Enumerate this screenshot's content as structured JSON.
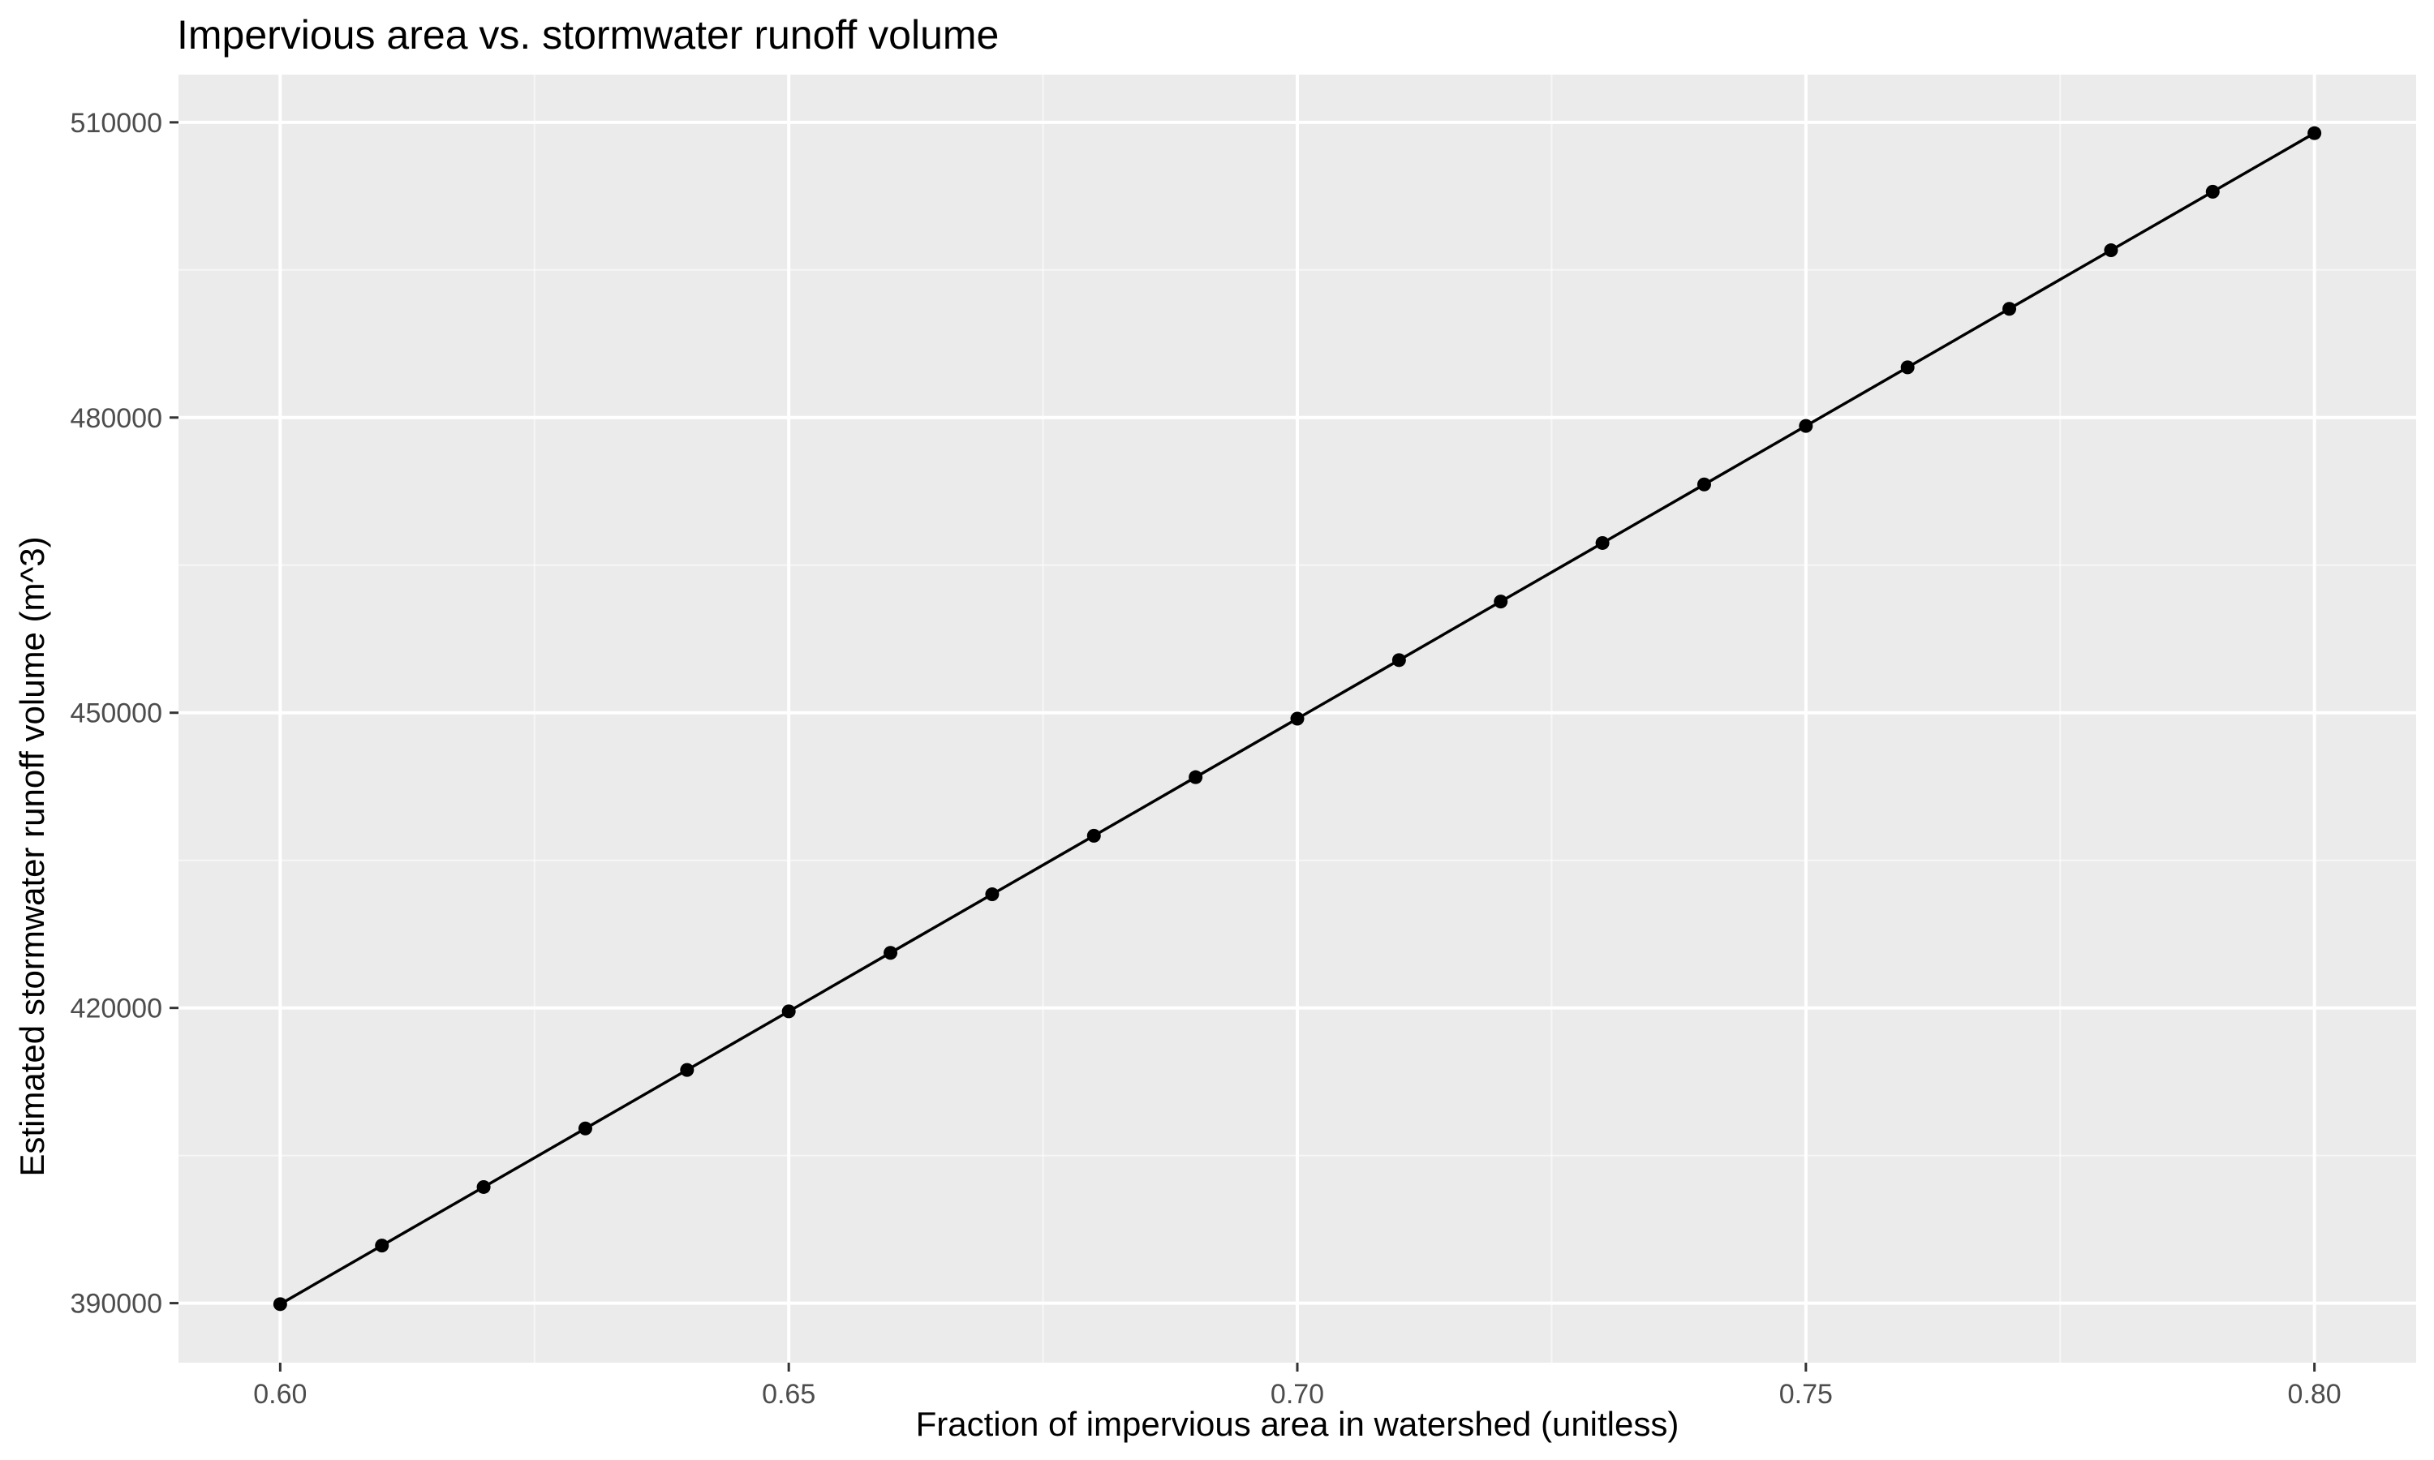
{
  "chart_data": {
    "type": "line",
    "title": "Impervious area vs. stormwater runoff volume",
    "xlabel": "Fraction of impervious area in watershed (unitless)",
    "ylabel": "Estimated stormwater runoff volume (m^3)",
    "x": [
      0.6,
      0.61,
      0.62,
      0.63,
      0.64,
      0.65,
      0.66,
      0.67,
      0.68,
      0.69,
      0.7,
      0.71,
      0.72,
      0.73,
      0.74,
      0.75,
      0.76,
      0.77,
      0.78,
      0.79,
      0.8
    ],
    "series": [
      {
        "values": [
          389900,
          395850,
          401800,
          407750,
          413700,
          419650,
          425600,
          431550,
          437500,
          443450,
          449400,
          455350,
          461300,
          467250,
          473200,
          479150,
          485100,
          491050,
          497000,
          502950,
          508900
        ]
      }
    ],
    "xlim": [
      0.59,
      0.81
    ],
    "ylim": [
      383950,
      514850
    ],
    "x_ticks": [
      0.6,
      0.65,
      0.7,
      0.75,
      0.8
    ],
    "x_tick_labels": [
      "0.60",
      "0.65",
      "0.70",
      "0.75",
      "0.80"
    ],
    "y_ticks": [
      390000,
      420000,
      450000,
      480000,
      510000
    ],
    "y_tick_labels": [
      "390000",
      "420000",
      "450000",
      "480000",
      "510000"
    ],
    "grid": true,
    "legend": "none",
    "colors": {
      "panel_background": "#ebebeb",
      "grid_major": "#ffffff",
      "line": "#000000",
      "point": "#000000",
      "tick_label": "#4d4d4d"
    }
  }
}
